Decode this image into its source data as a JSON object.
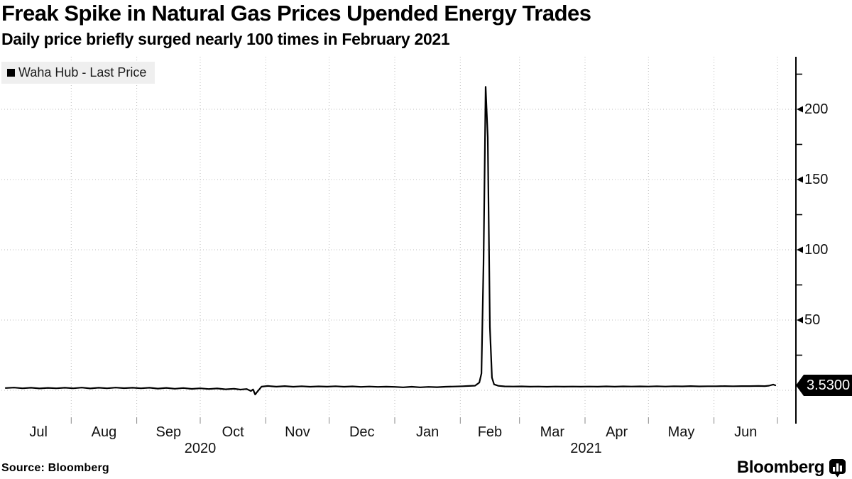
{
  "header": {
    "title": "Freak Spike in Natural Gas Prices Upended Energy Trades",
    "subtitle": "Daily price briefly surged nearly 100 times in February 2021"
  },
  "legend": {
    "label": "Waha Hub - Last Price"
  },
  "chart_data": {
    "type": "line",
    "title": "Freak Spike in Natural Gas Prices Upended Energy Trades",
    "subtitle": "Daily price briefly surged nearly 100 times in February 2021",
    "x_range": [
      "Jul 2020",
      "Jun 2021"
    ],
    "y_range": [
      -8,
      232
    ],
    "grid": true,
    "legend_position": "top-left",
    "y_axis": {
      "side": "right",
      "tick_labels": [
        {
          "label": "50",
          "value": 50
        },
        {
          "label": "100",
          "value": 100
        },
        {
          "label": "150",
          "value": 150
        },
        {
          "label": "200",
          "value": 200
        }
      ],
      "minor_tick_values": [
        25,
        75,
        125,
        175,
        225
      ],
      "gridline_values": [
        0,
        50,
        100,
        150,
        200
      ]
    },
    "x_axis": {
      "month_labels": [
        {
          "label": "Jul",
          "day": 15.5
        },
        {
          "label": "Aug",
          "day": 46.5
        },
        {
          "label": "Sep",
          "day": 77
        },
        {
          "label": "Oct",
          "day": 107.5
        },
        {
          "label": "Nov",
          "day": 138
        },
        {
          "label": "Dec",
          "day": 168.5
        },
        {
          "label": "Jan",
          "day": 199.5
        },
        {
          "label": "Feb",
          "day": 229
        },
        {
          "label": "Mar",
          "day": 258.5
        },
        {
          "label": "Apr",
          "day": 289
        },
        {
          "label": "May",
          "day": 319.5
        },
        {
          "label": "Jun",
          "day": 350
        }
      ],
      "year_labels": [
        {
          "label": "2020",
          "day": 92
        },
        {
          "label": "2021",
          "day": 274.5
        }
      ],
      "month_boundaries_days": [
        31,
        62,
        92,
        123,
        153,
        184,
        215,
        243,
        274,
        304,
        335,
        365
      ]
    },
    "series": [
      {
        "name": "Waha Hub - Last Price",
        "color": "#000000",
        "points_day_value": [
          [
            0,
            1.6
          ],
          [
            4,
            1.9
          ],
          [
            8,
            1.4
          ],
          [
            12,
            1.8
          ],
          [
            16,
            1.3
          ],
          [
            20,
            1.7
          ],
          [
            24,
            1.4
          ],
          [
            28,
            1.8
          ],
          [
            32,
            1.4
          ],
          [
            36,
            1.9
          ],
          [
            40,
            1.3
          ],
          [
            44,
            1.8
          ],
          [
            48,
            1.4
          ],
          [
            52,
            1.9
          ],
          [
            56,
            1.5
          ],
          [
            60,
            1.8
          ],
          [
            64,
            1.4
          ],
          [
            68,
            1.8
          ],
          [
            72,
            1.2
          ],
          [
            76,
            1.7
          ],
          [
            80,
            1.1
          ],
          [
            84,
            1.6
          ],
          [
            88,
            1.0
          ],
          [
            92,
            1.4
          ],
          [
            96,
            0.9
          ],
          [
            100,
            1.3
          ],
          [
            104,
            0.7
          ],
          [
            108,
            1.1
          ],
          [
            111,
            0.5
          ],
          [
            114,
            0.9
          ],
          [
            116,
            -0.5
          ],
          [
            117,
            0.6
          ],
          [
            118,
            -3.0
          ],
          [
            119,
            -1.0
          ],
          [
            120,
            0.8
          ],
          [
            121,
            2.6
          ],
          [
            124,
            3.1
          ],
          [
            128,
            2.6
          ],
          [
            132,
            3.0
          ],
          [
            136,
            2.5
          ],
          [
            140,
            2.9
          ],
          [
            144,
            2.5
          ],
          [
            148,
            2.8
          ],
          [
            152,
            2.6
          ],
          [
            156,
            2.9
          ],
          [
            160,
            2.5
          ],
          [
            164,
            2.8
          ],
          [
            168,
            2.4
          ],
          [
            172,
            2.7
          ],
          [
            176,
            2.4
          ],
          [
            180,
            2.6
          ],
          [
            184,
            2.4
          ],
          [
            188,
            2.1
          ],
          [
            192,
            2.5
          ],
          [
            196,
            2.1
          ],
          [
            200,
            2.4
          ],
          [
            204,
            2.2
          ],
          [
            208,
            2.5
          ],
          [
            212,
            2.7
          ],
          [
            216,
            2.9
          ],
          [
            219,
            3.1
          ],
          [
            222,
            3.3
          ],
          [
            224,
            5.5
          ],
          [
            225,
            12
          ],
          [
            226,
            90
          ],
          [
            227,
            216
          ],
          [
            228,
            180
          ],
          [
            229,
            45
          ],
          [
            230,
            9
          ],
          [
            231,
            4.2
          ],
          [
            233,
            3.2
          ],
          [
            236,
            2.8
          ],
          [
            240,
            2.7
          ],
          [
            244,
            2.8
          ],
          [
            248,
            2.6
          ],
          [
            252,
            2.7
          ],
          [
            256,
            2.5
          ],
          [
            260,
            2.7
          ],
          [
            264,
            2.6
          ],
          [
            268,
            2.7
          ],
          [
            272,
            2.6
          ],
          [
            276,
            2.7
          ],
          [
            280,
            2.6
          ],
          [
            284,
            2.8
          ],
          [
            288,
            2.6
          ],
          [
            292,
            2.8
          ],
          [
            296,
            2.7
          ],
          [
            300,
            2.8
          ],
          [
            304,
            2.7
          ],
          [
            308,
            2.9
          ],
          [
            312,
            2.7
          ],
          [
            316,
            2.9
          ],
          [
            320,
            2.8
          ],
          [
            324,
            3.0
          ],
          [
            328,
            2.8
          ],
          [
            332,
            2.9
          ],
          [
            336,
            2.9
          ],
          [
            340,
            3.0
          ],
          [
            344,
            2.9
          ],
          [
            348,
            3.0
          ],
          [
            352,
            3.0
          ],
          [
            356,
            3.1
          ],
          [
            359,
            3.0
          ],
          [
            361,
            3.3
          ],
          [
            363,
            4.1
          ],
          [
            364,
            3.53
          ]
        ]
      }
    ],
    "peak_value": 216,
    "last_price": 3.53,
    "last_price_label": "3.5300"
  },
  "footer": {
    "source": "Source: Bloomberg",
    "logo_text": "Bloomberg"
  },
  "colors": {
    "line": "#000000",
    "grid": "#bdbdbd",
    "legend_bg": "#efefef",
    "price_tag_bg": "#000000",
    "price_tag_text": "#ffffff"
  }
}
